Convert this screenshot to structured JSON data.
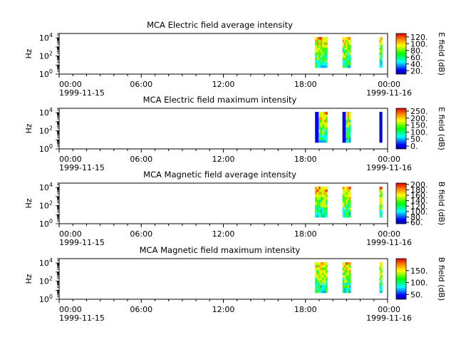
{
  "panels": [
    {
      "title": "MCA  Electric field average intensity",
      "ylabel": "Hz",
      "cbar_label": "E field (dB)",
      "cbar_ticks": [
        "20.",
        "40.",
        "60.",
        "80.",
        "100.",
        "120."
      ],
      "cbar_range": [
        10,
        130
      ]
    },
    {
      "title": "MCA  Electric field maximum intensity",
      "ylabel": "Hz",
      "cbar_label": "E field (dB)",
      "cbar_ticks": [
        "0.",
        "50.",
        "100.",
        "150.",
        "200.",
        "250."
      ],
      "cbar_range": [
        -20,
        270
      ]
    },
    {
      "title": "MCA  Magnetic field average intensity",
      "ylabel": "Hz",
      "cbar_label": "B field (dB)",
      "cbar_ticks": [
        "60.",
        "80.",
        "100.",
        "120.",
        "140.",
        "160.",
        "180.",
        "200."
      ],
      "cbar_range": [
        55,
        205
      ]
    },
    {
      "title": "MCA  Magnetic field maximum intensity",
      "ylabel": "Hz",
      "cbar_label": "B field (dB)",
      "cbar_ticks": [
        "50.",
        "100.",
        "150."
      ],
      "cbar_range": [
        30,
        200
      ]
    }
  ],
  "chart_data": {
    "type": "heatmap",
    "x_range_hours": [
      0,
      24
    ],
    "x_ticks": [
      {
        "hour": 0,
        "time": "00:00",
        "date": "1999-11-15"
      },
      {
        "hour": 6,
        "time": "06:00",
        "date": ""
      },
      {
        "hour": 12,
        "time": "12:00",
        "date": ""
      },
      {
        "hour": 18,
        "time": "18:00",
        "date": ""
      },
      {
        "hour": 24,
        "time": "00:00",
        "date": "1999-11-16"
      }
    ],
    "y_scale": "log",
    "y_range_hz": [
      1,
      30000
    ],
    "y_ticks": [
      {
        "value": 1,
        "base": "10",
        "exp": "0"
      },
      {
        "value": 100,
        "base": "10",
        "exp": "2"
      },
      {
        "value": 10000,
        "base": "10",
        "exp": "4"
      }
    ],
    "data_intervals_hours": [
      [
        18.7,
        19.6
      ],
      [
        20.7,
        21.3
      ],
      [
        23.4,
        23.6
      ]
    ],
    "colormap": "rainbow (blue-cyan-green-yellow-red)"
  }
}
